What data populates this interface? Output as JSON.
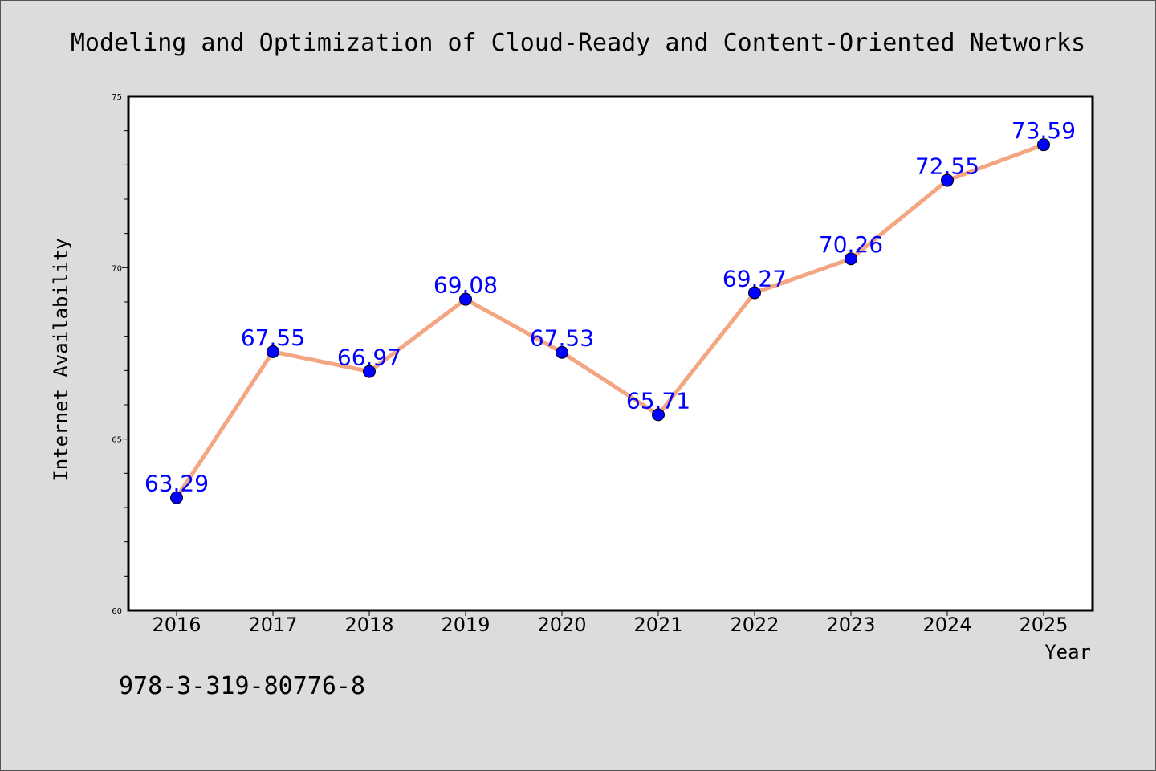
{
  "chart_data": {
    "type": "line",
    "title": "Modeling and Optimization of Cloud-Ready and Content-Oriented Networks",
    "xlabel": "Year",
    "ylabel": "Internet Availability",
    "categories": [
      "2016",
      "2017",
      "2018",
      "2019",
      "2020",
      "2021",
      "2022",
      "2023",
      "2024",
      "2025"
    ],
    "values": [
      63.29,
      67.55,
      66.97,
      69.08,
      67.53,
      65.71,
      69.27,
      70.26,
      72.55,
      73.59
    ],
    "data_labels": [
      "63.29",
      "67.55",
      "66.97",
      "69.08",
      "67.53",
      "65.71",
      "69.27",
      "70.26",
      "72.55",
      "73.59"
    ],
    "ylim": [
      60,
      75
    ],
    "yticks": [
      "60",
      "65",
      "70",
      "75"
    ],
    "grid": false,
    "legend": "none",
    "annotation": "978-3-319-80776-8",
    "colors": {
      "line": "#f4a582",
      "marker": "#0000ff",
      "label": "#0000ff",
      "background": "#dcdcdc",
      "plot_area": "#ffffff"
    }
  }
}
